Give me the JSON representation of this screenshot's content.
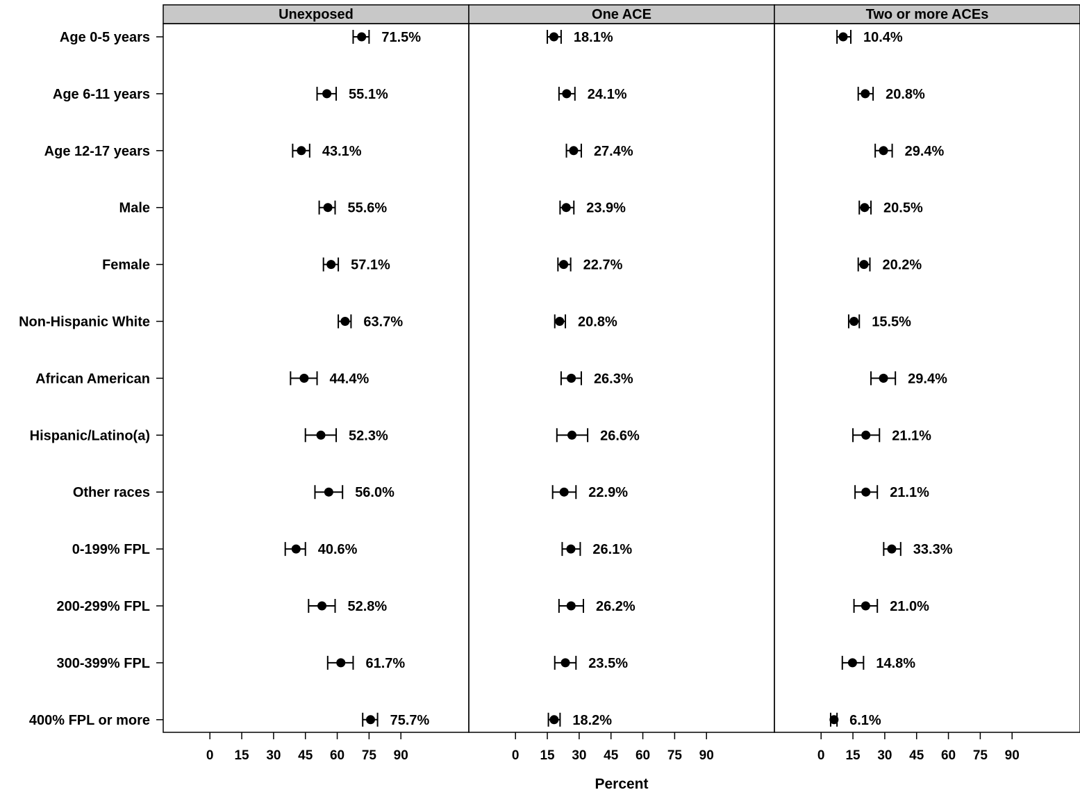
{
  "chart_data": {
    "type": "scatter",
    "subtype": "forest-plot-with-error-bars",
    "panels": [
      "Unexposed",
      "One ACE",
      "Two or more ACEs"
    ],
    "categories": [
      "Age 0-5 years",
      "Age 6-11 years",
      "Age 12-17 years",
      "Male",
      "Female",
      "Non-Hispanic White",
      "African American",
      "Hispanic/Latino(a)",
      "Other races",
      "0-199% FPL",
      "200-299% FPL",
      "300-399% FPL",
      "400% FPL or more"
    ],
    "series": [
      {
        "name": "Unexposed",
        "values": [
          71.5,
          55.1,
          43.1,
          55.6,
          57.1,
          63.7,
          44.4,
          52.3,
          56.0,
          40.6,
          52.8,
          61.7,
          75.7
        ],
        "ci_low": [
          67.5,
          50.5,
          39.0,
          51.5,
          53.5,
          60.5,
          38.0,
          45.0,
          49.5,
          35.5,
          46.5,
          55.5,
          72.0
        ],
        "ci_high": [
          75.0,
          59.5,
          47.0,
          59.0,
          60.5,
          66.5,
          50.5,
          59.5,
          62.5,
          45.0,
          59.0,
          67.5,
          79.0
        ],
        "labels": [
          "71.5%",
          "55.1%",
          "43.1%",
          "55.6%",
          "57.1%",
          "63.7%",
          "44.4%",
          "52.3%",
          "56.0%",
          "40.6%",
          "52.8%",
          "61.7%",
          "75.7%"
        ]
      },
      {
        "name": "One ACE",
        "values": [
          18.1,
          24.1,
          27.4,
          23.9,
          22.7,
          20.8,
          26.3,
          26.6,
          22.9,
          26.1,
          26.2,
          23.5,
          18.2
        ],
        "ci_low": [
          15.0,
          20.5,
          24.0,
          21.0,
          20.0,
          18.5,
          21.5,
          19.5,
          17.5,
          22.0,
          20.5,
          18.5,
          15.5
        ],
        "ci_high": [
          21.5,
          28.0,
          31.0,
          27.5,
          26.0,
          23.5,
          31.0,
          34.0,
          28.5,
          30.5,
          32.0,
          28.5,
          21.0
        ],
        "labels": [
          "18.1%",
          "24.1%",
          "27.4%",
          "23.9%",
          "22.7%",
          "20.8%",
          "26.3%",
          "26.6%",
          "22.9%",
          "26.1%",
          "26.2%",
          "23.5%",
          "18.2%"
        ]
      },
      {
        "name": "Two or more ACEs",
        "values": [
          10.4,
          20.8,
          29.4,
          20.5,
          20.2,
          15.5,
          29.4,
          21.1,
          21.1,
          33.3,
          21.0,
          14.8,
          6.1
        ],
        "ci_low": [
          7.5,
          17.5,
          25.5,
          18.0,
          17.5,
          13.0,
          23.5,
          15.0,
          16.0,
          29.5,
          15.5,
          10.0,
          4.5
        ],
        "ci_high": [
          14.0,
          24.5,
          33.5,
          23.5,
          23.0,
          18.0,
          35.0,
          27.5,
          26.5,
          37.5,
          26.5,
          20.0,
          7.5
        ],
        "labels": [
          "10.4%",
          "20.8%",
          "29.4%",
          "20.5%",
          "20.2%",
          "15.5%",
          "29.4%",
          "21.1%",
          "21.1%",
          "33.3%",
          "21.0%",
          "14.8%",
          "6.1%"
        ]
      }
    ],
    "xticks": [
      0,
      15,
      30,
      45,
      60,
      75,
      90
    ],
    "xlim": [
      -22,
      122
    ],
    "xlabel": "Percent",
    "ylabel": "",
    "title": "",
    "grid": false,
    "colors": {
      "marker": "#000000",
      "panel_header": "#c8c8c8",
      "axis": "#000000"
    }
  }
}
